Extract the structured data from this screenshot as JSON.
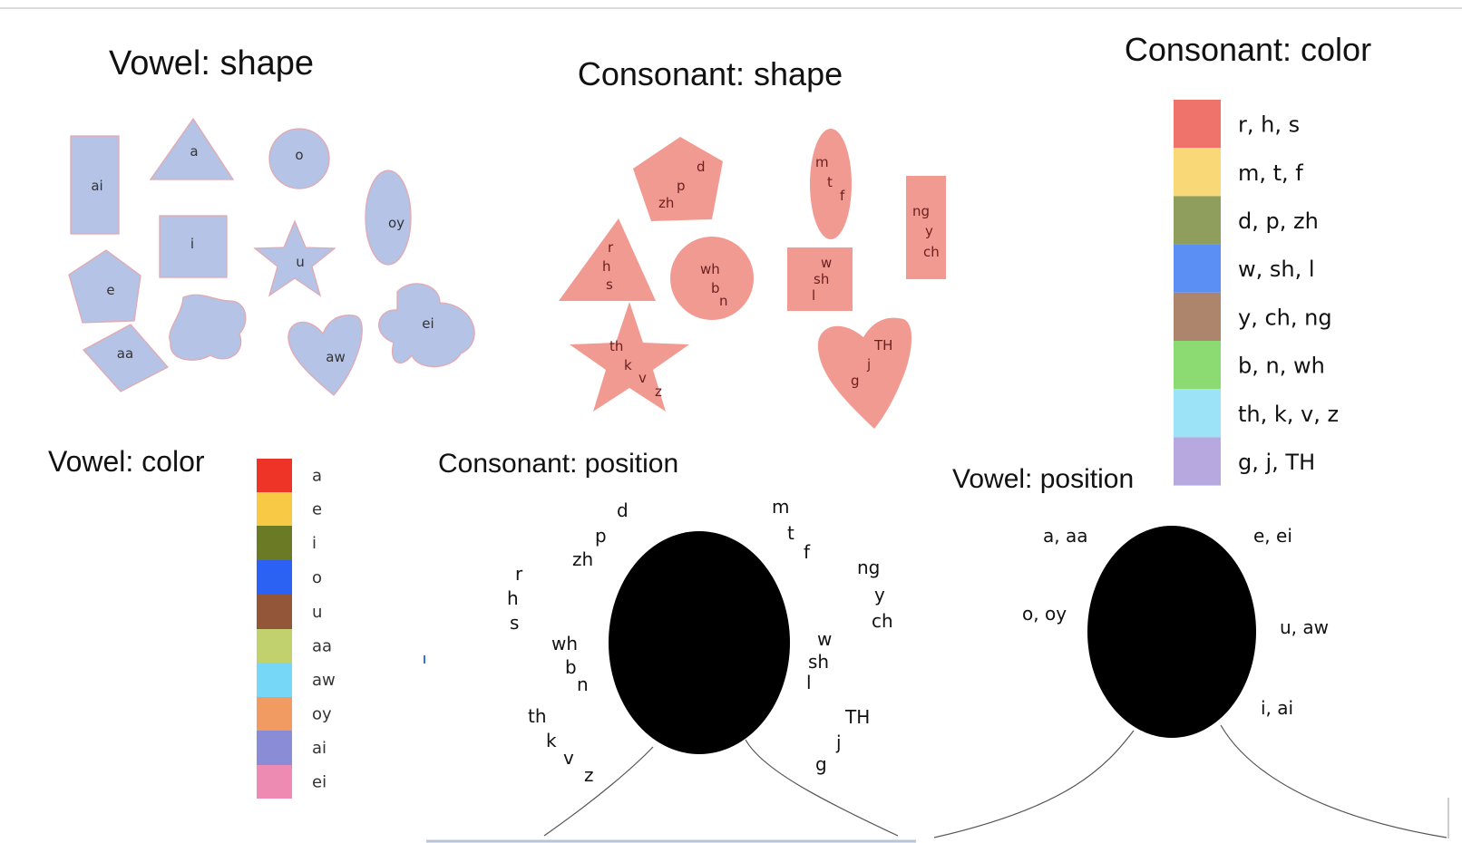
{
  "titles": {
    "vowel_shape": "Vowel: shape",
    "consonant_shape": "Consonant: shape",
    "consonant_color": "Consonant: color",
    "vowel_color": "Vowel: color",
    "consonant_position": "Consonant: position",
    "vowel_position": "Vowel: position"
  },
  "vowel_shapes": [
    "ai",
    "a",
    "o",
    "oy",
    "i",
    "u",
    "e",
    "ei",
    "aa",
    "aw"
  ],
  "consonant_shapes": {
    "pentagon": [
      "d",
      "p",
      "zh"
    ],
    "ellipse": [
      "m",
      "t",
      "f"
    ],
    "rect_tall": [
      "ng",
      "y",
      "ch"
    ],
    "triangle": [
      "r",
      "h",
      "s"
    ],
    "circle": [
      "wh",
      "b",
      "n"
    ],
    "square": [
      "w",
      "sh",
      "l"
    ],
    "star": [
      "th",
      "k",
      "v",
      "z"
    ],
    "heart": [
      "TH",
      "j",
      "g"
    ]
  },
  "consonant_colors": [
    {
      "label": "r, h, s",
      "color": "#f0736b"
    },
    {
      "label": "m, t, f",
      "color": "#f9d878"
    },
    {
      "label": "d, p, zh",
      "color": "#8f9e5c"
    },
    {
      "label": "w, sh, l",
      "color": "#5b8ff3"
    },
    {
      "label": "y, ch, ng",
      "color": "#ad856c"
    },
    {
      "label": "b, n, wh",
      "color": "#8cdb72"
    },
    {
      "label": "th, k, v, z",
      "color": "#9de3f8"
    },
    {
      "label": "g, j, TH",
      "color": "#b8a8e0"
    }
  ],
  "vowel_colors": [
    {
      "label": "a",
      "color": "#ee3327"
    },
    {
      "label": "e",
      "color": "#f8c945"
    },
    {
      "label": "i",
      "color": "#6b7a25"
    },
    {
      "label": "o",
      "color": "#2b62f4"
    },
    {
      "label": "u",
      "color": "#935638"
    },
    {
      "label": "aa",
      "color": "#c1d16d"
    },
    {
      "label": "aw",
      "color": "#77d7f6"
    },
    {
      "label": "oy",
      "color": "#f19b62"
    },
    {
      "label": "ai",
      "color": "#8a8cd6"
    },
    {
      "label": "ei",
      "color": "#ee8bb3"
    }
  ],
  "consonant_position_labels": {
    "d": "d",
    "p": "p",
    "zh": "zh",
    "r": "r",
    "h": "h",
    "s": "s",
    "wh": "wh",
    "b": "b",
    "n": "n",
    "th": "th",
    "k": "k",
    "v": "v",
    "z": "z",
    "m": "m",
    "t": "t",
    "f": "f",
    "ng": "ng",
    "y": "y",
    "ch": "ch",
    "w": "w",
    "sh": "sh",
    "l": "l",
    "TH": "TH",
    "j": "j",
    "g": "g"
  },
  "vowel_position_labels": {
    "top_left": "a, aa",
    "top_right": "e, ei",
    "mid_left": "o, oy",
    "mid_right": "u, aw",
    "bottom_right": "i, ai"
  },
  "colors": {
    "vowel_fill": "#b4c3e6",
    "consonant_fill": "#f19a91",
    "head": "#000000"
  }
}
